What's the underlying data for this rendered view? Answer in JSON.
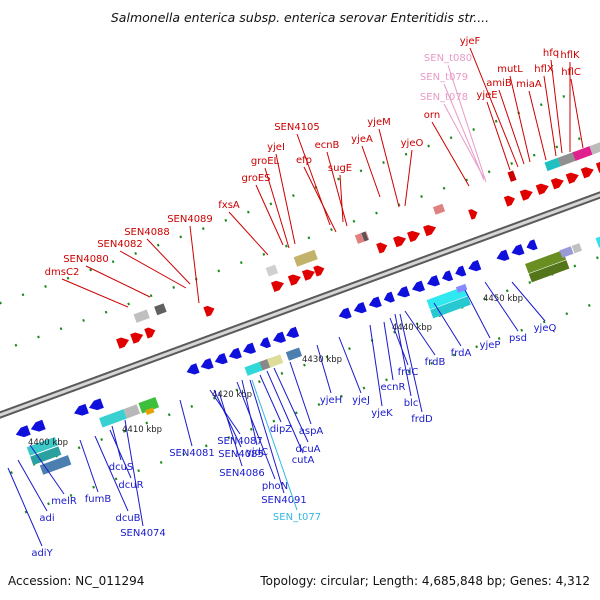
{
  "title": "Salmonella enterica subsp. enterica serovar Enteritidis str....",
  "accession": "Accession: NC_011294",
  "meta": "Topology: circular; Length: 4,685,848 bp; Genes: 4,312",
  "colors": {
    "backbone": "#8c8c8c",
    "forward_label": "#cc0000",
    "reverse_label": "#1a1acc",
    "trna_forward": "#e89ac8",
    "trna_reverse": "#33b8e0"
  },
  "ticks": [
    "4400 kbp",
    "4410 kbp",
    "4420 kbp",
    "4430 kbp",
    "4440 kbp",
    "4450 kbp"
  ],
  "top_labels": [
    "dmsC2",
    "SEN4080",
    "SEN4082",
    "SEN4088",
    "SEN4089",
    "fxsA",
    "groES",
    "groEL",
    "yjeI",
    "efp",
    "SEN4105",
    "ecnB",
    "sugE",
    "yjeA",
    "yjeM",
    "yjeO",
    "orn",
    "SEN_t078",
    "SEN_t079",
    "SEN_t080",
    "yjeE",
    "yjeF",
    "amiB",
    "mutL",
    "miaA",
    "hflX",
    "hfq",
    "hflK",
    "hflC"
  ],
  "bottom_labels": [
    "adiY",
    "adi",
    "melR",
    "fumB",
    "dcuB",
    "dcuR",
    "dcuS",
    "SEN4074",
    "SEN4081",
    "SEN4087",
    "SEN4085",
    "SEN4086",
    "yjdC",
    "phoN",
    "dipZ",
    "SEN4091",
    "SEN_t077",
    "cutA",
    "dcuA",
    "aspA",
    "yjeH",
    "yjeJ",
    "yjeK",
    "ecnR",
    "frdC",
    "blc",
    "frdD",
    "frdB",
    "frdA",
    "yjeP",
    "psd",
    "yjeQ"
  ]
}
